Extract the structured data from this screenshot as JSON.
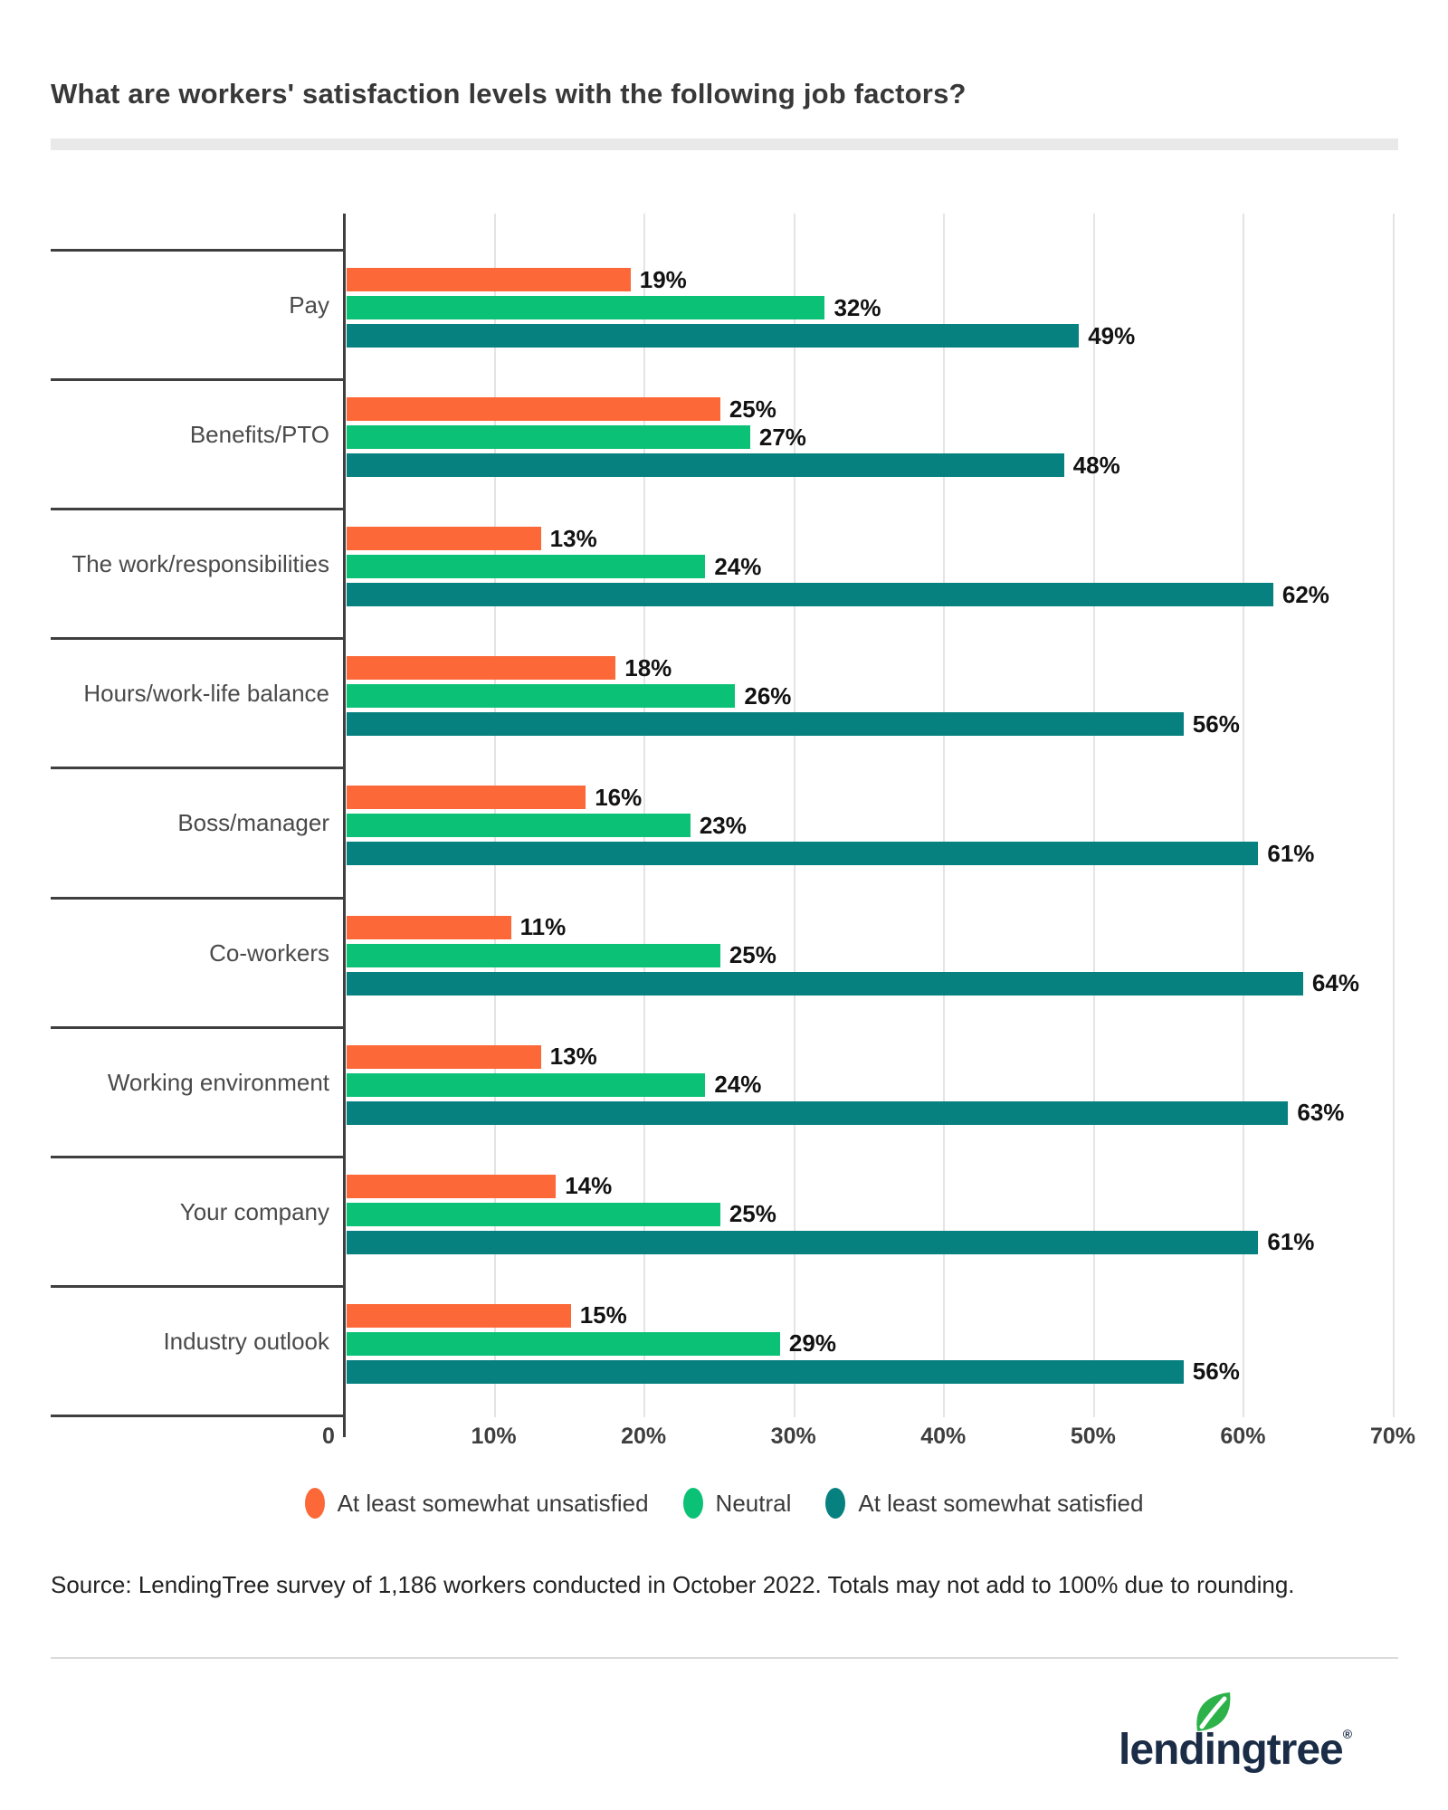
{
  "header": {
    "title": "What are workers' satisfaction levels with the following job factors?"
  },
  "chart_data": {
    "type": "bar",
    "orientation": "horizontal",
    "title": "What are workers' satisfaction levels with the following job factors?",
    "categories": [
      "Pay",
      "Benefits/PTO",
      "The work/responsibilities",
      "Hours/work-life balance",
      "Boss/manager",
      "Co-workers",
      "Working environment",
      "Your company",
      "Industry outlook"
    ],
    "series": [
      {
        "name": "At least somewhat unsatisfied",
        "color": "#FC6838",
        "values": [
          19,
          25,
          13,
          18,
          16,
          11,
          13,
          14,
          15
        ]
      },
      {
        "name": "Neutral",
        "color": "#0BC176",
        "values": [
          32,
          27,
          24,
          26,
          23,
          25,
          24,
          25,
          29
        ]
      },
      {
        "name": "At least somewhat satisfied",
        "color": "#078080",
        "values": [
          49,
          48,
          62,
          56,
          61,
          64,
          63,
          61,
          56
        ]
      }
    ],
    "value_suffix": "%",
    "xlim": [
      0,
      70
    ],
    "x_ticks": [
      "0",
      "10%",
      "20%",
      "30%",
      "40%",
      "50%",
      "60%",
      "70%"
    ],
    "grid": true,
    "legend_position": "bottom"
  },
  "source": {
    "text": "Source: LendingTree survey of 1,186 workers conducted in October 2022. Totals may not add to 100% due to rounding."
  },
  "footer": {
    "logo_text": "lendingtree",
    "registered": "®",
    "navy_color": "#1B2C47",
    "leaf_color": "#2DB249"
  }
}
